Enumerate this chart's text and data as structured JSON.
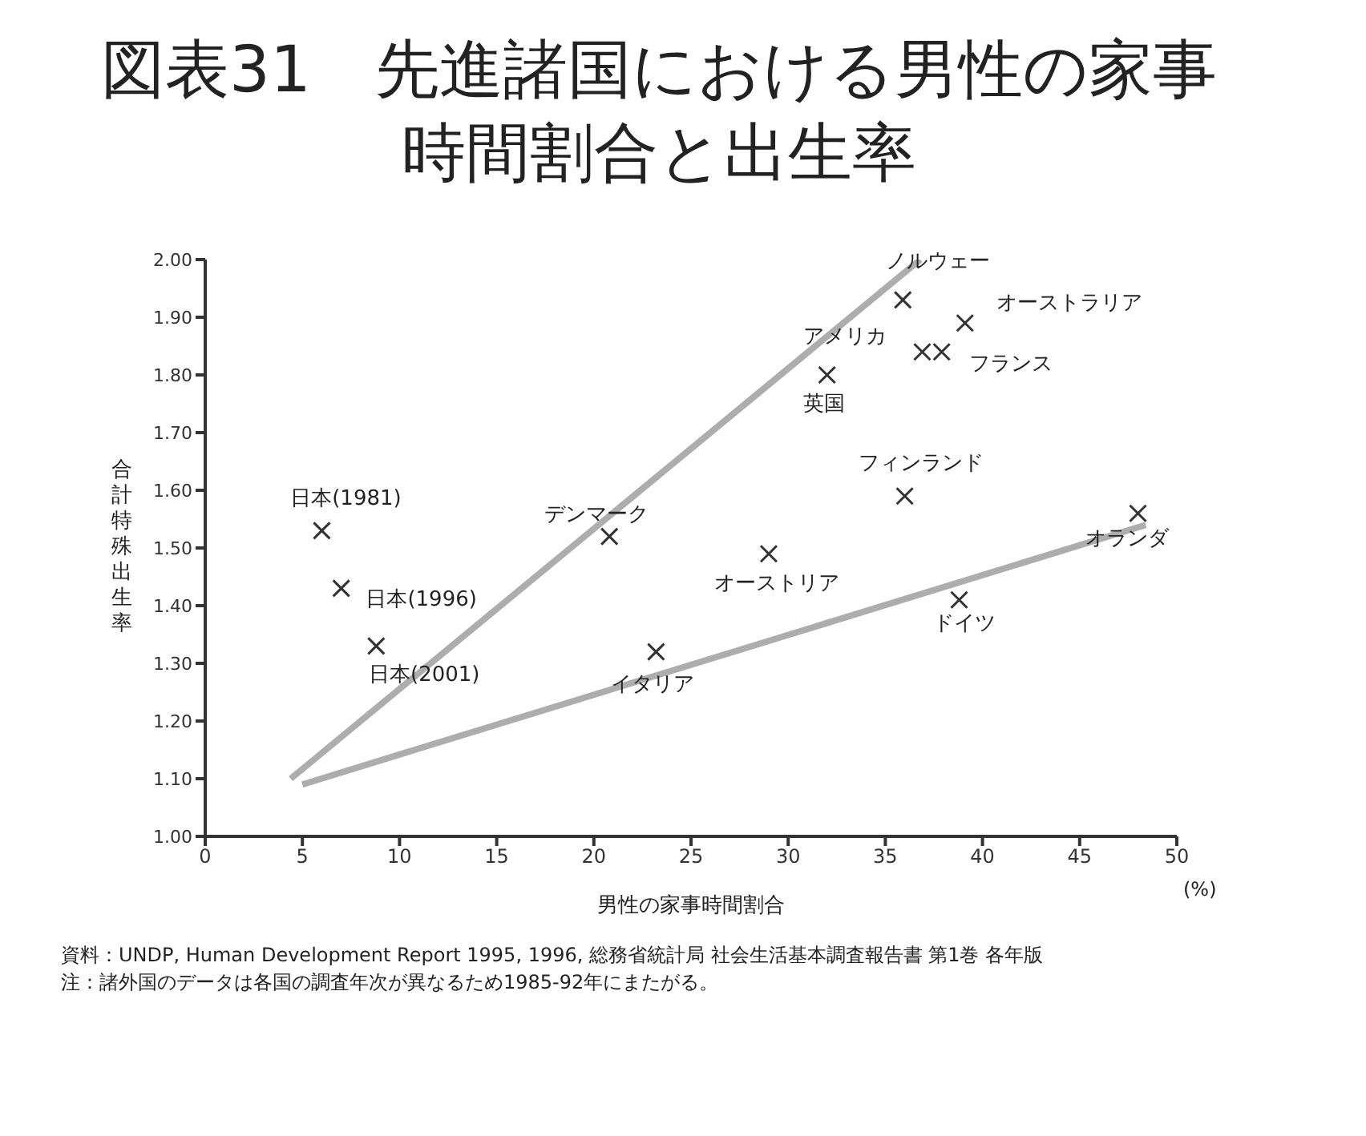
{
  "chart_data": {
    "type": "scatter",
    "title": "図表31　先進諸国における男性の家事時間割合と出生率",
    "xlabel": "男性の家事時間割合",
    "ylabel": "合計特殊出生率",
    "xlim": [
      0,
      50
    ],
    "xticks": [
      0,
      5,
      10,
      15,
      20,
      25,
      30,
      35,
      40,
      45,
      50
    ],
    "ylim": [
      1,
      2
    ],
    "yticks": [
      {
        "value": 1,
        "label": "1.00"
      },
      {
        "value": 1.1,
        "label": "1.10"
      },
      {
        "value": 1.2,
        "label": "1.20"
      },
      {
        "value": 1.3,
        "label": "1.30"
      },
      {
        "value": 1.4,
        "label": "1.40"
      },
      {
        "value": 1.5,
        "label": "1.50"
      },
      {
        "value": 1.6,
        "label": "1.60"
      },
      {
        "value": 1.7,
        "label": "1.70"
      },
      {
        "value": 1.8,
        "label": "1.80"
      },
      {
        "value": 1.9,
        "label": "1.90"
      },
      {
        "value": 2,
        "label": "2.00"
      }
    ],
    "grid": false,
    "legend": false,
    "series": [
      {
        "color": "#333333",
        "marker": "cross",
        "x": [
          6.0,
          7.0,
          8.8,
          20.8,
          35.9,
          39.1,
          36.9,
          37.9,
          32.0,
          36.0,
          29.0,
          48.0,
          38.8,
          23.2
        ],
        "values": [
          1.53,
          1.43,
          1.33,
          1.52,
          1.93,
          1.89,
          1.84,
          1.84,
          1.8,
          1.59,
          1.49,
          1.56,
          1.41,
          1.32
        ]
      },
      {
        "type": "line",
        "color": "#999999",
        "line_style": "solid",
        "x": [
          4.4,
          36.8
        ],
        "values": [
          1.1,
          2.0
        ]
      },
      {
        "type": "line",
        "color": "#999999",
        "line_style": "solid",
        "x": [
          5.0,
          48.4
        ],
        "values": [
          1.09,
          1.54
        ]
      }
    ],
    "annotations": [
      {
        "text": "日本(1981)",
        "x": 6.0,
        "y": 1.53
      },
      {
        "text": "日本(1996)",
        "x": 7.0,
        "y": 1.43
      },
      {
        "text": "日本(2001)",
        "x": 8.8,
        "y": 1.33
      },
      {
        "text": "デンマーク",
        "x": 20.8,
        "y": 1.52
      },
      {
        "text": "ノルウェー",
        "x": 35.9,
        "y": 1.93
      },
      {
        "text": "オーストラリア",
        "x": 39.1,
        "y": 1.89
      },
      {
        "text": "アメリカ",
        "x": 36.9,
        "y": 1.84
      },
      {
        "text": "フランス",
        "x": 37.9,
        "y": 1.84
      },
      {
        "text": "英国",
        "x": 32.0,
        "y": 1.8
      },
      {
        "text": "フィンランド",
        "x": 36.0,
        "y": 1.59
      },
      {
        "text": "オーストリア",
        "x": 29.0,
        "y": 1.49
      },
      {
        "text": "オランダ",
        "x": 48.0,
        "y": 1.56
      },
      {
        "text": "ドイツ",
        "x": 38.8,
        "y": 1.41
      },
      {
        "text": "イタリア",
        "x": 23.2,
        "y": 1.32
      },
      "(%)",
      "資料：UNDP, Human Development Report 1995, 1996, 総務省統計局 社会生活基本調査報告書 第1巻 各年版",
      "注：諸外国のデータは各国の調査年次が異なるため1985-92年にまたがる。"
    ]
  }
}
